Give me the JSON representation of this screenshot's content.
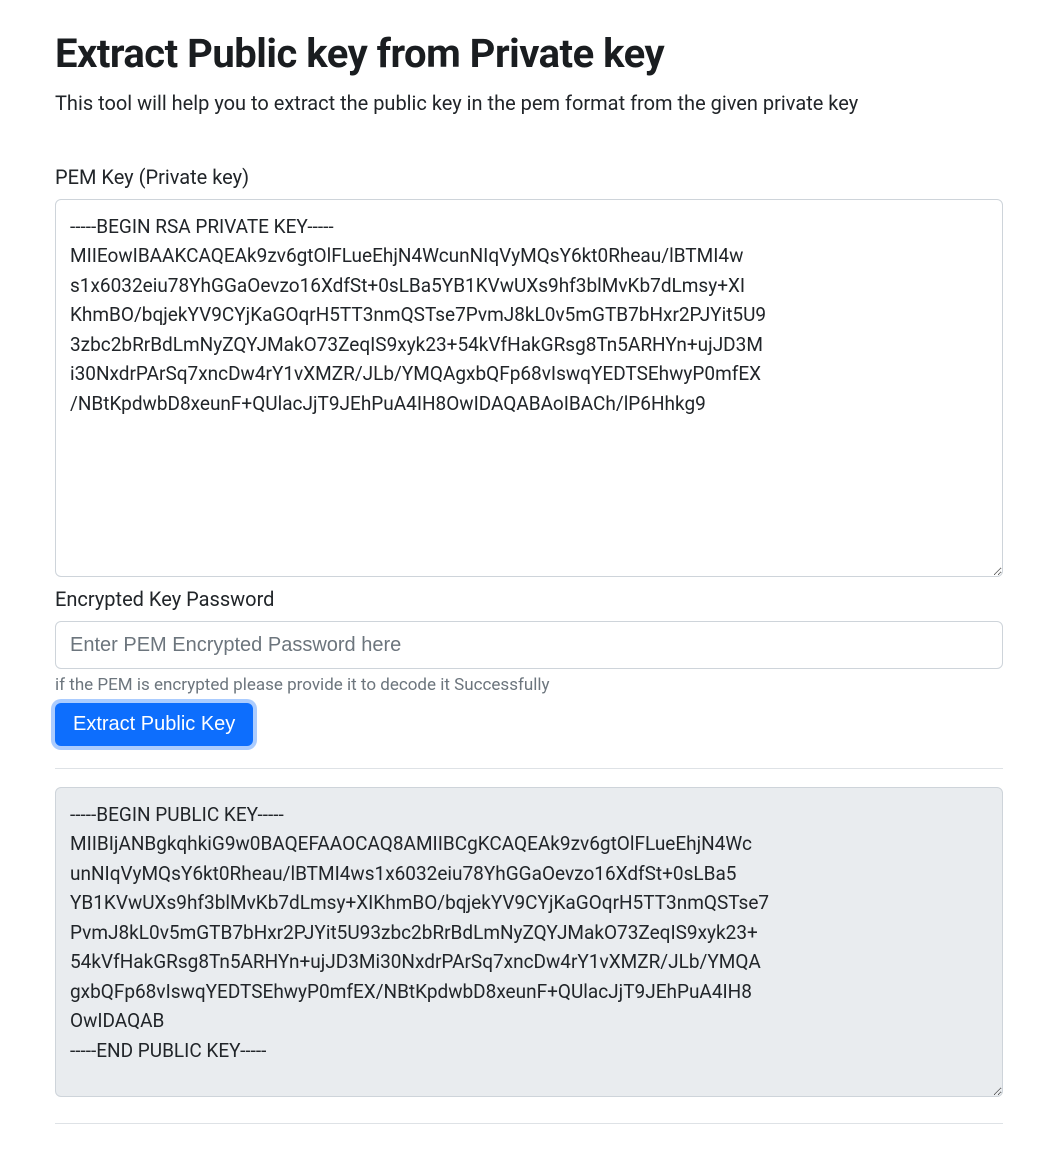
{
  "page": {
    "title": "Extract Public key from Private key",
    "subtitle": "This tool will help you to extract the public key in the pem format from the given private key"
  },
  "form": {
    "pem_label": "PEM Key (Private key)",
    "pem_value": "-----BEGIN RSA PRIVATE KEY-----\nMIIEowIBAAKCAQEAk9zv6gtOlFLueEhjN4WcunNIqVyMQsY6kt0Rheau/lBTMI4w\ns1x6032eiu78YhGGaOevzo16XdfSt+0sLBa5YB1KVwUXs9hf3blMvKb7dLmsy+XI\nKhmBO/bqjekYV9CYjKaGOqrH5TT3nmQSTse7PvmJ8kL0v5mGTB7bHxr2PJYit5U9\n3zbc2bRrBdLmNyZQYJMakO73ZeqIS9xyk23+54kVfHakGRsg8Tn5ARHYn+ujJD3M\ni30NxdrPArSq7xncDw4rY1vXMZR/JLb/YMQAgxbQFp68vIswqYEDTSEhwyP0mfEX\n/NBtKpdwbD8xeunF+QUlacJjT9JEhPuA4IH8OwIDAQABAoIBACh/lP6Hhkg9",
    "password_label": "Encrypted Key Password",
    "password_placeholder": "Enter PEM Encrypted Password here",
    "password_help": "if the PEM is encrypted please provide it to decode it Successfully",
    "submit_label": "Extract Public Key"
  },
  "output": {
    "public_key": "-----BEGIN PUBLIC KEY-----\nMIIBIjANBgkqhkiG9w0BAQEFAAOCAQ8AMIIBCgKCAQEAk9zv6gtOlFLueEhjN4Wc\nunNIqVyMQsY6kt0Rheau/lBTMI4ws1x6032eiu78YhGGaOevzo16XdfSt+0sLBa5\nYB1KVwUXs9hf3blMvKb7dLmsy+XIKhmBO/bqjekYV9CYjKaGOqrH5TT3nmQSTse7\nPvmJ8kL0v5mGTB7bHxr2PJYit5U93zbc2bRrBdLmNyZQYJMakO73ZeqIS9xyk23+\n54kVfHakGRsg8Tn5ARHYn+ujJD3Mi30NxdrPArSq7xncDw4rY1vXMZR/JLb/YMQA\ngxbQFp68vIswqYEDTSEhwyP0mfEX/NBtKpdwbD8xeunF+QUlacJjT9JEhPuA4IH8\nOwIDAQAB\n-----END PUBLIC KEY-----"
  },
  "colors": {
    "primary": "#0d6efd",
    "border": "#ced4da",
    "text": "#212529",
    "muted": "#6c757d",
    "output_bg": "#e9ecef",
    "divider": "#dee2e6",
    "focus_ring": "rgba(13,110,253,.35)"
  }
}
